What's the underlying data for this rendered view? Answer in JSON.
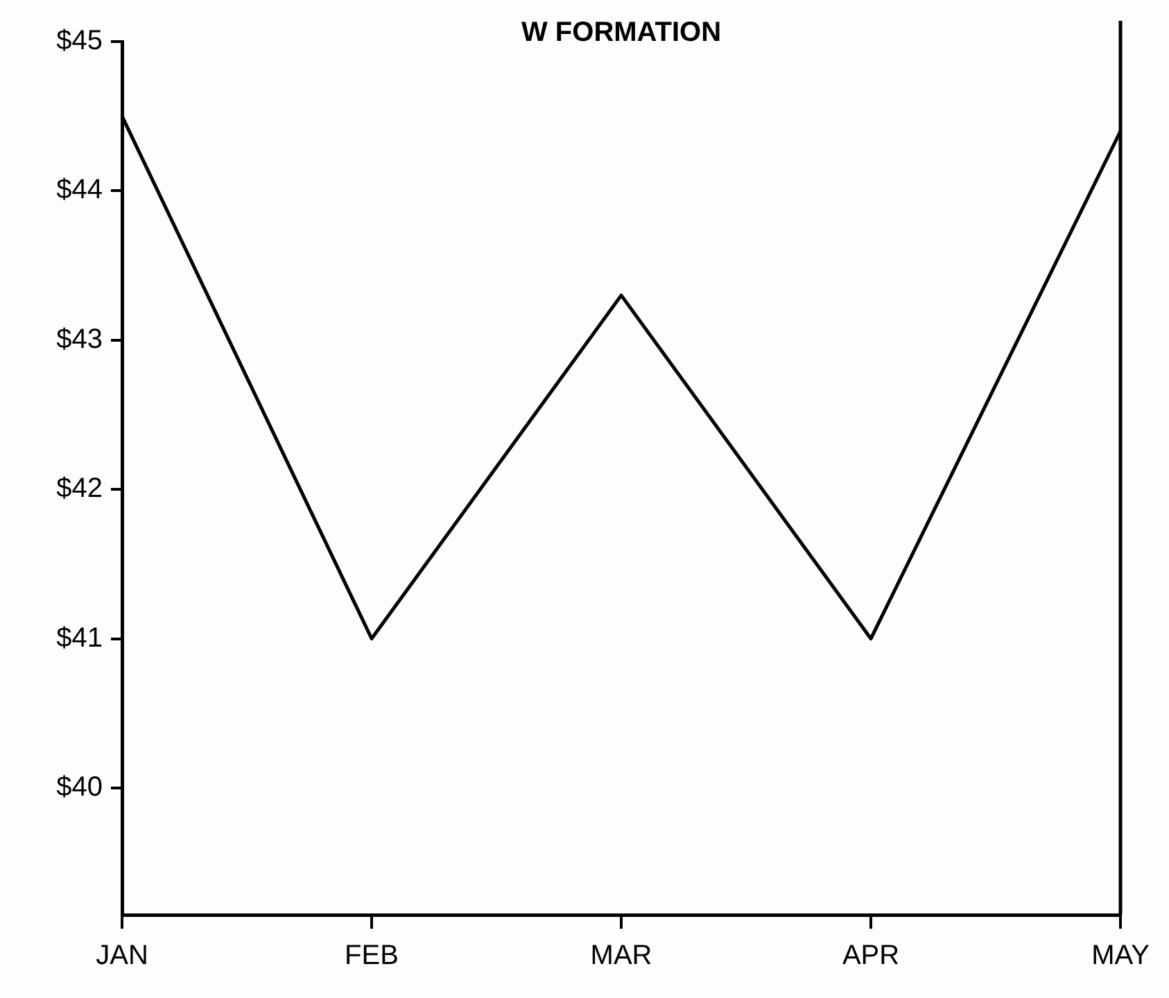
{
  "chart_data": {
    "type": "line",
    "title": "W FORMATION",
    "categories": [
      "JAN",
      "FEB",
      "MAR",
      "APR",
      "MAY"
    ],
    "series": [
      {
        "color": "#000000",
        "values": [
          44.5,
          41.0,
          43.3,
          41.0,
          44.4
        ]
      }
    ],
    "ylim": [
      39.15,
      45
    ],
    "yticks": [
      {
        "value": 40,
        "label": "$40"
      },
      {
        "value": 41,
        "label": "$41"
      },
      {
        "value": 42,
        "label": "$42"
      },
      {
        "value": 43,
        "label": "$43"
      },
      {
        "value": 44,
        "label": "$44"
      },
      {
        "value": 45,
        "label": "$45"
      }
    ],
    "grid": false,
    "legend": false,
    "marker": "none",
    "line_style": "solid"
  }
}
